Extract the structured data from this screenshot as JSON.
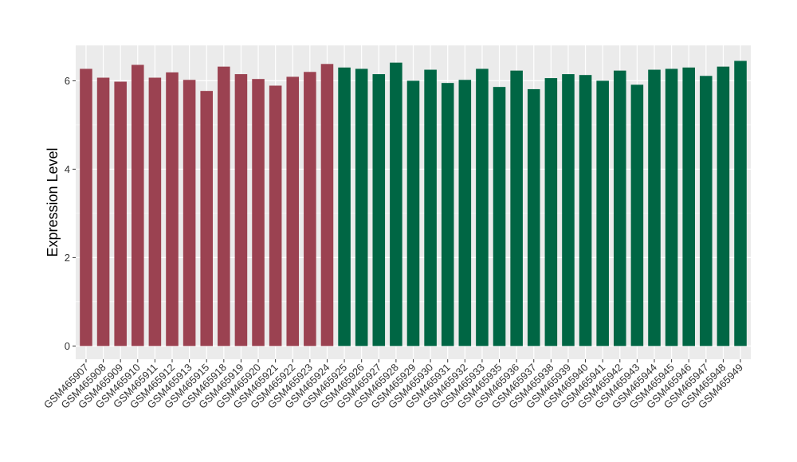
{
  "chart_data": {
    "type": "bar",
    "title": "",
    "xlabel": "",
    "ylabel": "Expression Level",
    "ylim": [
      -0.3,
      6.8
    ],
    "yticks": [
      0,
      2,
      4,
      6
    ],
    "grid": true,
    "panel_background": "#EBEBEB",
    "categories": [
      "GSM465907",
      "GSM465908",
      "GSM465909",
      "GSM465910",
      "GSM465911",
      "GSM465912",
      "GSM465913",
      "GSM465915",
      "GSM465918",
      "GSM465919",
      "GSM465920",
      "GSM465921",
      "GSM465922",
      "GSM465923",
      "GSM465924",
      "GSM465925",
      "GSM465926",
      "GSM465927",
      "GSM465928",
      "GSM465929",
      "GSM465930",
      "GSM465931",
      "GSM465932",
      "GSM465933",
      "GSM465935",
      "GSM465936",
      "GSM465937",
      "GSM465938",
      "GSM465939",
      "GSM465940",
      "GSM465941",
      "GSM465942",
      "GSM465943",
      "GSM465944",
      "GSM465945",
      "GSM465946",
      "GSM465947",
      "GSM465948",
      "GSM465949"
    ],
    "values": [
      6.27,
      6.07,
      5.98,
      6.36,
      6.07,
      6.19,
      6.02,
      5.77,
      6.32,
      6.15,
      6.04,
      5.89,
      6.09,
      6.2,
      6.38,
      6.3,
      6.27,
      6.15,
      6.41,
      6.0,
      6.25,
      5.95,
      6.02,
      6.27,
      5.86,
      6.23,
      5.81,
      6.06,
      6.15,
      6.13,
      6.0,
      6.23,
      5.91,
      6.25,
      6.27,
      6.3,
      6.11,
      6.32,
      6.45
    ],
    "bar_colors": [
      "#9B4251",
      "#9B4251",
      "#9B4251",
      "#9B4251",
      "#9B4251",
      "#9B4251",
      "#9B4251",
      "#9B4251",
      "#9B4251",
      "#9B4251",
      "#9B4251",
      "#9B4251",
      "#9B4251",
      "#9B4251",
      "#9B4251",
      "#006644",
      "#006644",
      "#006644",
      "#006644",
      "#006644",
      "#006644",
      "#006644",
      "#006644",
      "#006644",
      "#006644",
      "#006644",
      "#006644",
      "#006644",
      "#006644",
      "#006644",
      "#006644",
      "#006644",
      "#006644",
      "#006644",
      "#006644",
      "#006644",
      "#006644",
      "#006644",
      "#006644"
    ]
  }
}
